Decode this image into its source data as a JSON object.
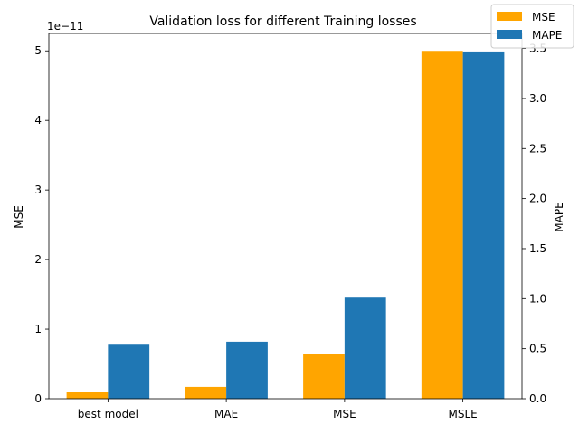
{
  "chart_data": {
    "type": "bar",
    "title": "Validation loss for different Training losses",
    "categories": [
      "best model",
      "MAE",
      "MSE",
      "MSLE"
    ],
    "left_axis": {
      "label": "MSE",
      "ylim": [
        0,
        5.25e-11
      ],
      "ticks": [
        0,
        1e-11,
        2e-11,
        3e-11,
        4e-11,
        5e-11
      ],
      "tick_labels": [
        "0",
        "1",
        "2",
        "3",
        "4",
        "5"
      ],
      "offset_label": "1e−11"
    },
    "right_axis": {
      "label": "MAPE",
      "ylim": [
        0,
        3.65
      ],
      "ticks": [
        0,
        0.5,
        1.0,
        1.5,
        2.0,
        2.5,
        3.0,
        3.5
      ],
      "tick_labels": [
        "0.0",
        "0.5",
        "1.0",
        "1.5",
        "2.0",
        "2.5",
        "3.0",
        "3.5"
      ]
    },
    "series": [
      {
        "name": "MSE",
        "axis": "left",
        "color": "#ffa500",
        "values": [
          1e-12,
          1.7e-12,
          6.4e-12,
          5e-11
        ]
      },
      {
        "name": "MAPE",
        "axis": "right",
        "color": "#1f77b4",
        "values": [
          0.54,
          0.57,
          1.01,
          3.47
        ]
      }
    ],
    "legend": {
      "placement": "top-right",
      "entries": [
        "MSE",
        "MAPE"
      ]
    },
    "grid": false
  }
}
